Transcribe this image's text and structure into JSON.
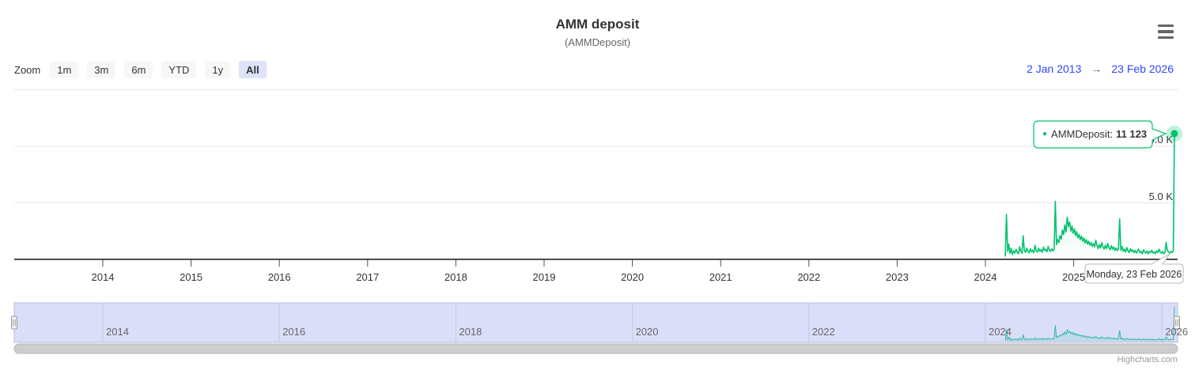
{
  "header": {
    "title": "AMM deposit",
    "subtitle": "(AMMDeposit)"
  },
  "context_menu_icon": "hamburger-menu",
  "range_selector": {
    "zoom_label": "Zoom",
    "buttons": [
      "1m",
      "3m",
      "6m",
      "YTD",
      "1y",
      "All"
    ],
    "selected": "All",
    "from_date": "2 Jan 2013",
    "arrow": "→",
    "to_date": "23 Feb 2026"
  },
  "tooltip": {
    "bullet": "●",
    "series_label": "AMMDeposit:",
    "value": "11 123",
    "date_label": "Monday, 23 Feb 2026"
  },
  "credits": "Highcharts.com",
  "colors": {
    "accent": "#00c26e",
    "accent_halo": "rgba(0,194,110,0.25)",
    "navigator_series": "#2fb8ab",
    "range_text": "#3346ff",
    "selected_button_bg": "#dde3f8",
    "navigator_mask": "#dbdef8",
    "navigator_grid": "#c3c7ea",
    "navigator_outline": "#b6bce0",
    "grid_line": "#e7e7e7",
    "axis_line": "#4d4d4d",
    "scrollbar_thumb": "#cdcdcd",
    "scrollbar_border": "#b7b7b7",
    "tooltip_border": "#b8b8b8"
  },
  "chart_data": {
    "type": "line",
    "title": "AMM deposit",
    "subtitle": "(AMMDeposit)",
    "xlabel": "",
    "ylabel": "",
    "x_range": [
      "2 Jan 2013",
      "23 Feb 2026"
    ],
    "ylim": [
      0,
      15000
    ],
    "grid": "horizontal",
    "legend": "none",
    "x_ticks": [
      2014,
      2015,
      2016,
      2017,
      2018,
      2019,
      2020,
      2021,
      2022,
      2023,
      2024,
      2025,
      2026
    ],
    "y_ticks": [
      {
        "value": 5000,
        "label": "5.0 K"
      },
      {
        "value": 10000,
        "label": "10.0 K"
      }
    ],
    "navigator_years": [
      2014,
      2016,
      2018,
      2020,
      2022,
      2024,
      2026
    ],
    "last_point": {
      "date": "Monday, 23 Feb 2026",
      "value": 11123,
      "display": "11 123"
    },
    "series": [
      {
        "name": "AMMDeposit",
        "color": "#00c26e",
        "x_start_year": 2024.225,
        "x_step_years": 0.0135,
        "values": [
          250,
          3980,
          700,
          1350,
          520,
          980,
          430,
          760,
          560,
          890,
          640,
          480,
          1120,
          700,
          540,
          2080,
          820,
          600,
          1010,
          720,
          560,
          940,
          680,
          810,
          590,
          1240,
          760,
          640,
          980,
          710,
          850,
          620,
          1080,
          780,
          900,
          660,
          1150,
          820,
          700,
          930,
          760,
          900,
          5140,
          1300,
          1750,
          1500,
          2100,
          1800,
          2600,
          2200,
          3050,
          2400,
          3720,
          2900,
          3300,
          2500,
          2950,
          2300,
          2700,
          2100,
          2450,
          1900,
          2200,
          1750,
          2050,
          1600,
          1900,
          1450,
          1750,
          1350,
          1600,
          1250,
          1500,
          1150,
          1400,
          1100,
          1700,
          1200,
          950,
          1300,
          1000,
          1500,
          1100,
          900,
          1250,
          950,
          1400,
          1050,
          850,
          1200,
          900,
          1100,
          800,
          1000,
          760,
          950,
          3580,
          800,
          1150,
          700,
          900,
          650,
          1050,
          750,
          600,
          950,
          700,
          850,
          600,
          800,
          550,
          750,
          900,
          600,
          700,
          500,
          850,
          650,
          550,
          750,
          500,
          700,
          600,
          800,
          550,
          650,
          500,
          750,
          600,
          900,
          650,
          550,
          700,
          500,
          600,
          1500,
          800,
          650,
          550,
          700,
          600,
          750,
          11123
        ]
      }
    ]
  }
}
